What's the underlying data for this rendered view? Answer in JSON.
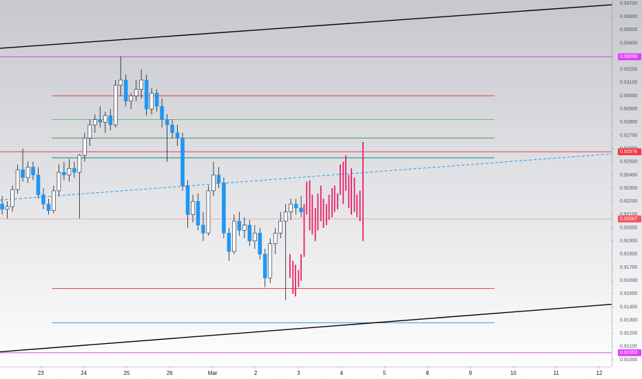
{
  "chart_data": {
    "type": "candlestick",
    "xlim": [
      -0.95,
      13.29
    ],
    "xticks": [
      {
        "value": 0,
        "label": "23"
      },
      {
        "value": 1,
        "label": "24"
      },
      {
        "value": 2,
        "label": "25"
      },
      {
        "value": 3,
        "label": "26"
      },
      {
        "value": 4,
        "label": "Mar"
      },
      {
        "value": 5,
        "label": "2"
      },
      {
        "value": 6,
        "label": "3"
      },
      {
        "value": 7,
        "label": "4"
      },
      {
        "value": 8,
        "label": "5"
      },
      {
        "value": 9,
        "label": "8"
      },
      {
        "value": 10,
        "label": "9"
      },
      {
        "value": 11,
        "label": "10"
      },
      {
        "value": 12,
        "label": "11"
      },
      {
        "value": 13,
        "label": "12"
      }
    ],
    "ylim": [
      0.90948,
      0.93726
    ],
    "yticks": [
      {
        "value": 0.91,
        "label": "0.91000"
      },
      {
        "value": 0.911,
        "label": "0.91100"
      },
      {
        "value": 0.912,
        "label": "0.91200"
      },
      {
        "value": 0.913,
        "label": "0.91300"
      },
      {
        "value": 0.914,
        "label": "0.91400"
      },
      {
        "value": 0.915,
        "label": "0.91500"
      },
      {
        "value": 0.916,
        "label": "0.91600"
      },
      {
        "value": 0.917,
        "label": "0.91700"
      },
      {
        "value": 0.918,
        "label": "0.91800"
      },
      {
        "value": 0.919,
        "label": "0.91900"
      },
      {
        "value": 0.92,
        "label": "0.92000"
      },
      {
        "value": 0.921,
        "label": "0.92100"
      },
      {
        "value": 0.922,
        "label": "0.92200"
      },
      {
        "value": 0.923,
        "label": "0.92300"
      },
      {
        "value": 0.924,
        "label": "0.92400"
      },
      {
        "value": 0.925,
        "label": "0.92500"
      },
      {
        "value": 0.926,
        "label": "0.92600"
      },
      {
        "value": 0.927,
        "label": "0.92700"
      },
      {
        "value": 0.928,
        "label": "0.92800"
      },
      {
        "value": 0.929,
        "label": "0.92900"
      },
      {
        "value": 0.93,
        "label": "0.93000"
      },
      {
        "value": 0.931,
        "label": "0.93100"
      },
      {
        "value": 0.932,
        "label": "0.93200"
      },
      {
        "value": 0.933,
        "label": "0.93300"
      },
      {
        "value": 0.934,
        "label": "0.93400"
      },
      {
        "value": 0.935,
        "label": "0.93500"
      },
      {
        "value": 0.936,
        "label": "0.93600"
      },
      {
        "value": 0.937,
        "label": "0.93700"
      }
    ],
    "up_color": "#ffffff",
    "down_color": "#2196f3",
    "wick_color": "#131722",
    "candles": {
      "x": [
        -0.9,
        -0.78,
        -0.66,
        -0.54,
        -0.42,
        -0.3,
        -0.18,
        -0.06,
        0.06,
        0.18,
        0.3,
        0.42,
        0.54,
        0.66,
        0.78,
        0.9,
        1.02,
        1.14,
        1.26,
        1.38,
        1.5,
        1.62,
        1.74,
        1.86,
        1.98,
        2.1,
        2.22,
        2.34,
        2.46,
        2.58,
        2.7,
        2.82,
        2.94,
        3.06,
        3.18,
        3.3,
        3.42,
        3.54,
        3.66,
        3.78,
        3.9,
        4.02,
        4.14,
        4.26,
        4.38,
        4.5,
        4.62,
        4.74,
        4.86,
        4.98,
        5.1,
        5.22,
        5.34,
        5.46,
        5.58,
        5.7,
        5.82,
        5.94,
        6.06
      ],
      "open": [
        0.9218,
        0.9214,
        0.9216,
        0.9229,
        0.9244,
        0.9238,
        0.9246,
        0.924,
        0.9225,
        0.9218,
        0.9213,
        0.9228,
        0.9242,
        0.924,
        0.9245,
        0.9242,
        0.9255,
        0.9268,
        0.9278,
        0.9282,
        0.928,
        0.9285,
        0.9278,
        0.9308,
        0.9312,
        0.9296,
        0.93,
        0.9305,
        0.9312,
        0.929,
        0.9302,
        0.9292,
        0.9282,
        0.9278,
        0.9272,
        0.9268,
        0.9232,
        0.921,
        0.922,
        0.9202,
        0.9196,
        0.9228,
        0.924,
        0.9234,
        0.9196,
        0.9182,
        0.9205,
        0.9198,
        0.9202,
        0.919,
        0.9196,
        0.918,
        0.9162,
        0.9188,
        0.9196,
        0.9205,
        0.9212,
        0.9218,
        0.9215
      ],
      "high": [
        0.9224,
        0.922,
        0.9232,
        0.9248,
        0.926,
        0.925,
        0.925,
        0.9246,
        0.923,
        0.9222,
        0.9232,
        0.9248,
        0.925,
        0.9252,
        0.925,
        0.9256,
        0.9272,
        0.9282,
        0.9286,
        0.9292,
        0.9288,
        0.929,
        0.9312,
        0.933,
        0.9316,
        0.9302,
        0.9312,
        0.932,
        0.9316,
        0.9306,
        0.9305,
        0.9298,
        0.9286,
        0.9282,
        0.9278,
        0.9272,
        0.9236,
        0.9225,
        0.9226,
        0.9212,
        0.9232,
        0.925,
        0.9246,
        0.9238,
        0.92,
        0.921,
        0.9212,
        0.9208,
        0.9206,
        0.9202,
        0.92,
        0.9184,
        0.9192,
        0.92,
        0.9212,
        0.9218,
        0.9222,
        0.9222,
        0.9224
      ],
      "low": [
        0.921,
        0.9207,
        0.9212,
        0.9226,
        0.9235,
        0.9234,
        0.9236,
        0.9222,
        0.9214,
        0.921,
        0.9211,
        0.9224,
        0.9236,
        0.9235,
        0.9238,
        0.9207,
        0.925,
        0.9262,
        0.9272,
        0.9276,
        0.9272,
        0.9274,
        0.9276,
        0.93,
        0.9292,
        0.929,
        0.9296,
        0.9298,
        0.9285,
        0.9286,
        0.9288,
        0.9276,
        0.925,
        0.9268,
        0.9262,
        0.9228,
        0.92,
        0.9204,
        0.9198,
        0.919,
        0.9194,
        0.9224,
        0.923,
        0.9192,
        0.9175,
        0.918,
        0.9194,
        0.9192,
        0.9186,
        0.9184,
        0.9176,
        0.9155,
        0.9158,
        0.918,
        0.9192,
        0.9145,
        0.9206,
        0.921,
        0.9208
      ],
      "close": [
        0.9214,
        0.9216,
        0.9229,
        0.9244,
        0.9238,
        0.9246,
        0.924,
        0.9225,
        0.9218,
        0.9213,
        0.9228,
        0.9242,
        0.924,
        0.9245,
        0.9242,
        0.9255,
        0.9268,
        0.9278,
        0.9282,
        0.928,
        0.9285,
        0.9278,
        0.9308,
        0.9312,
        0.9296,
        0.93,
        0.9305,
        0.9312,
        0.929,
        0.9302,
        0.9292,
        0.9282,
        0.9278,
        0.9272,
        0.9268,
        0.9232,
        0.921,
        0.922,
        0.9202,
        0.9196,
        0.9228,
        0.924,
        0.9234,
        0.9196,
        0.9182,
        0.9205,
        0.9198,
        0.9202,
        0.919,
        0.9196,
        0.918,
        0.9162,
        0.9188,
        0.9196,
        0.9205,
        0.9212,
        0.9218,
        0.9215,
        0.9212
      ]
    },
    "projection": {
      "color": "#e91e63",
      "x": [
        5.8,
        5.87,
        5.93,
        6.0,
        6.06,
        6.13,
        6.19,
        6.26,
        6.32,
        6.39,
        6.45,
        6.52,
        6.58,
        6.65,
        6.71,
        6.78,
        6.84,
        6.91,
        6.97,
        7.04,
        7.1,
        7.17,
        7.23,
        7.3,
        7.36,
        7.43,
        7.5
      ],
      "high": [
        0.918,
        0.9175,
        0.9172,
        0.9168,
        0.918,
        0.9218,
        0.9235,
        0.9236,
        0.9225,
        0.9215,
        0.9226,
        0.9232,
        0.9222,
        0.9218,
        0.9225,
        0.923,
        0.9232,
        0.9226,
        0.9248,
        0.925,
        0.9255,
        0.924,
        0.9245,
        0.9238,
        0.9225,
        0.9228,
        0.9265
      ],
      "low": [
        0.9162,
        0.915,
        0.9148,
        0.9155,
        0.916,
        0.9178,
        0.921,
        0.9198,
        0.9195,
        0.919,
        0.9198,
        0.9205,
        0.92,
        0.9202,
        0.9206,
        0.9208,
        0.9212,
        0.9214,
        0.9225,
        0.9218,
        0.9228,
        0.9215,
        0.921,
        0.9212,
        0.9208,
        0.9205,
        0.919
      ]
    },
    "levels": [
      {
        "price": 0.93,
        "from": 0.26,
        "to": 10.56,
        "color": "#e53935"
      },
      {
        "price": 0.9282,
        "from": 0.26,
        "to": 10.56,
        "color": "#66bb6a"
      },
      {
        "price": 0.9268,
        "from": 0.26,
        "to": 10.56,
        "color": "#43a047"
      },
      {
        "price": 0.9253,
        "from": 0.26,
        "to": 10.56,
        "color": "#00897b"
      },
      {
        "price": 0.9154,
        "from": 0.26,
        "to": 10.56,
        "color": "#e53935"
      },
      {
        "price": 0.9128,
        "from": 0.26,
        "to": 10.56,
        "color": "#2196f3"
      }
    ],
    "price_lines": [
      {
        "price": 0.93296,
        "color": "#e040fb"
      },
      {
        "price": 0.92576,
        "color": "#f23645"
      },
      {
        "price": 0.92067,
        "color": "#f7525f"
      },
      {
        "price": 0.91053,
        "color": "#e040fb"
      }
    ],
    "trend_lines": [
      {
        "from": [
          -0.95,
          0.9336
        ],
        "to": [
          13.29,
          0.9369
        ],
        "color": "#000000",
        "dashed": false
      },
      {
        "from": [
          -0.95,
          0.9106
        ],
        "to": [
          13.29,
          0.9142
        ],
        "color": "#000000",
        "dashed": false
      },
      {
        "from": [
          -0.95,
          0.9221
        ],
        "to": [
          13.29,
          0.9256
        ],
        "color": "#2196f3",
        "dashed": true
      }
    ]
  }
}
